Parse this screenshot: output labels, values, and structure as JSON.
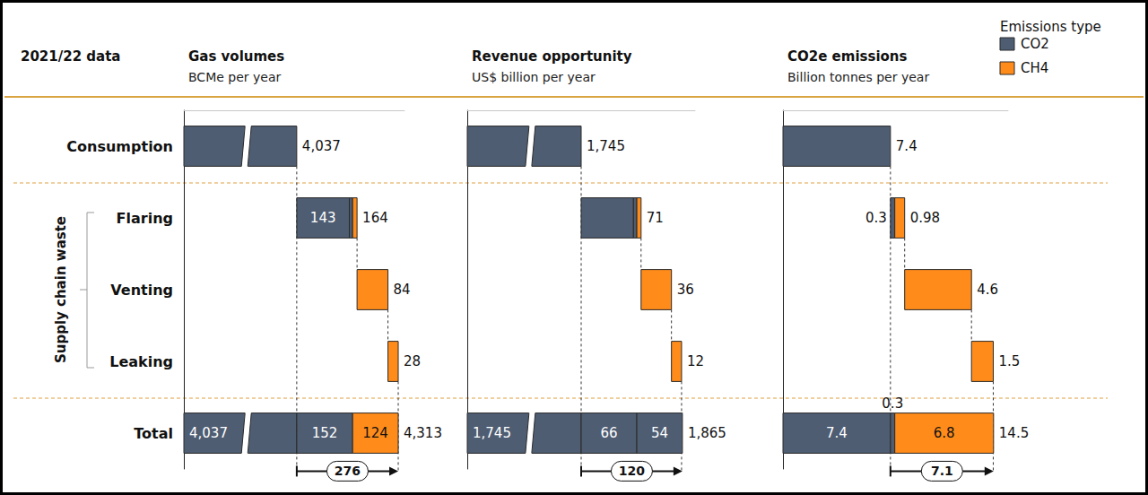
{
  "header": "2021/22 data",
  "categories": [
    "Consumption",
    "Flaring",
    "Venting",
    "Leaking",
    "Total"
  ],
  "group_label": "Supply chain waste",
  "emissions_types": {
    "title": "Emissions type",
    "items": [
      {
        "name": "CO2",
        "color": "#4e5d72"
      },
      {
        "name": "CH4",
        "color": "#ff8c1a"
      }
    ]
  },
  "chart_data": [
    {
      "type": "waterfall",
      "title": "Gas volumes",
      "subtitle": "BCMe per year",
      "xlim": [
        3730,
        4330
      ],
      "tick_labels": false,
      "bars": [
        {
          "values": [
            4037
          ],
          "series": [
            "CO2"
          ],
          "value_labels": [
            null
          ],
          "total": 4037,
          "total_label": "4,037"
        },
        {
          "values": [
            143,
            9,
            12
          ],
          "series": [
            "CO2",
            "CO2",
            "CH4"
          ],
          "value_labels": [
            "143",
            null,
            null
          ],
          "total": 164
        },
        {
          "values": [
            84
          ],
          "series": [
            "CH4"
          ],
          "value_labels": [
            null
          ],
          "total": 84
        },
        {
          "values": [
            28
          ],
          "series": [
            "CH4"
          ],
          "value_labels": [
            null
          ],
          "total": 28
        },
        {
          "values": [
            4037,
            152,
            124
          ],
          "series": [
            "CO2",
            "CO2",
            "CH4"
          ],
          "value_labels": [
            "4,037",
            "152",
            "124"
          ],
          "total": 4313,
          "total_label": "4,313"
        }
      ],
      "waste_total": 276
    },
    {
      "type": "waterfall",
      "title": "Revenue opportunity",
      "subtitle": "US$ billion per year",
      "xlim": [
        1610,
        1880
      ],
      "tick_labels": false,
      "bars": [
        {
          "values": [
            1745
          ],
          "series": [
            "CO2"
          ],
          "value_labels": [
            null
          ],
          "total": 1745,
          "total_label": "1,745"
        },
        {
          "values": [
            62,
            4,
            5
          ],
          "series": [
            "CO2",
            "CO2",
            "CH4"
          ],
          "value_labels": [
            null,
            null,
            null
          ],
          "total": 71
        },
        {
          "values": [
            36
          ],
          "series": [
            "CH4"
          ],
          "value_labels": [
            null
          ],
          "total": 36
        },
        {
          "values": [
            12
          ],
          "series": [
            "CH4"
          ],
          "value_labels": [
            null
          ],
          "total": 12
        },
        {
          "values": [
            1745,
            66,
            54
          ],
          "series": [
            "CO2",
            "CO2",
            "CO2"
          ],
          "value_labels": [
            "1,745",
            "66",
            "54"
          ],
          "total": 1865,
          "total_label": "1,865"
        }
      ],
      "waste_total": 120
    },
    {
      "type": "waterfall",
      "title": "CO2e emissions",
      "subtitle": "Billion tonnes per year",
      "xlim": [
        0,
        15.5
      ],
      "tick_labels": false,
      "bars": [
        {
          "values": [
            7.4
          ],
          "series": [
            "CO2"
          ],
          "value_labels": [
            null
          ],
          "total": 7.4
        },
        {
          "values": [
            0.3,
            0.68
          ],
          "series": [
            "CO2",
            "CH4"
          ],
          "value_labels": [
            "0.3",
            null
          ],
          "total": 0.98
        },
        {
          "values": [
            4.6
          ],
          "series": [
            "CH4"
          ],
          "value_labels": [
            null
          ],
          "total": 4.6
        },
        {
          "values": [
            1.5
          ],
          "series": [
            "CH4"
          ],
          "value_labels": [
            null
          ],
          "total": 1.5
        },
        {
          "values": [
            7.4,
            0.3,
            6.8
          ],
          "series": [
            "CO2",
            "CO2",
            "CH4"
          ],
          "value_labels": [
            "7.4",
            "0.3",
            "6.8"
          ],
          "total": 14.5
        }
      ],
      "waste_total": 7.1
    }
  ]
}
